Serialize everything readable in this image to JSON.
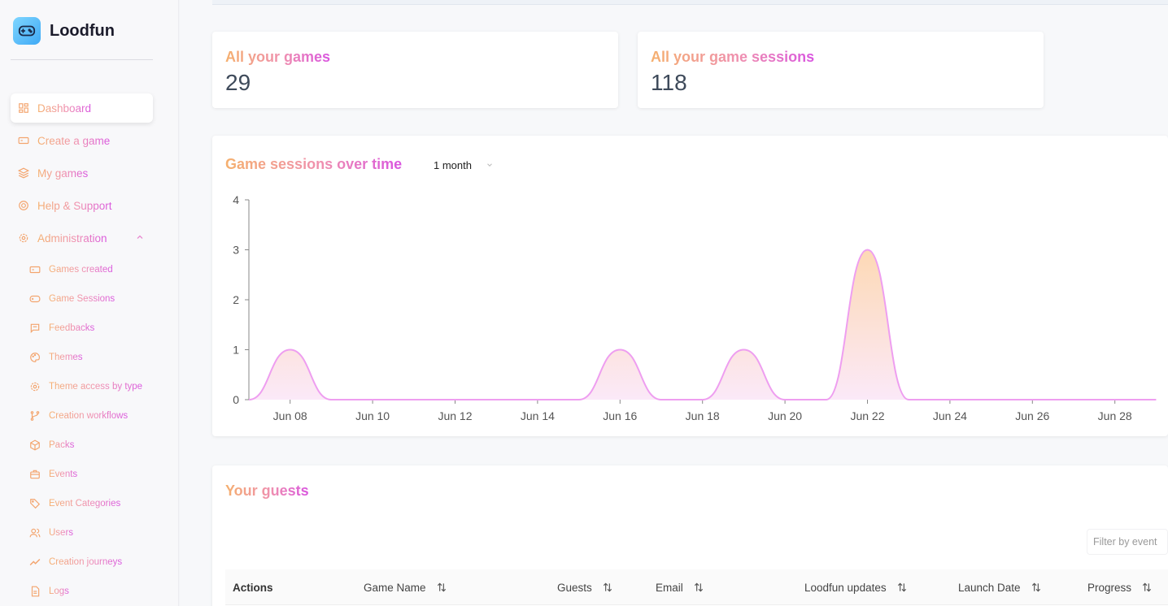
{
  "app": {
    "name": "Loodfun"
  },
  "sidebar": {
    "items": [
      {
        "label": "Dashboard",
        "icon": "dashboard-icon",
        "active": true
      },
      {
        "label": "Create a game",
        "icon": "ticket-icon"
      },
      {
        "label": "My games",
        "icon": "layers-icon"
      },
      {
        "label": "Help & Support",
        "icon": "lifebuoy-icon"
      },
      {
        "label": "Administration",
        "icon": "gear-icon",
        "expanded": true
      }
    ],
    "admin_items": [
      {
        "label": "Games created",
        "icon": "ticket-icon"
      },
      {
        "label": "Game Sessions",
        "icon": "gamepad-icon"
      },
      {
        "label": "Feedbacks",
        "icon": "message-icon"
      },
      {
        "label": "Themes",
        "icon": "palette-icon"
      },
      {
        "label": "Theme access by type",
        "icon": "gear-icon"
      },
      {
        "label": "Creation workflows",
        "icon": "workflow-icon"
      },
      {
        "label": "Packs",
        "icon": "box-icon"
      },
      {
        "label": "Events",
        "icon": "briefcase-icon"
      },
      {
        "label": "Event Categories",
        "icon": "tags-icon"
      },
      {
        "label": "Users",
        "icon": "users-icon"
      },
      {
        "label": "Creation journeys",
        "icon": "trend-icon"
      },
      {
        "label": "Logs",
        "icon": "file-icon"
      }
    ]
  },
  "stats": [
    {
      "title": "All your games",
      "value": "29"
    },
    {
      "title": "All your game sessions",
      "value": "118"
    }
  ],
  "sessions_chart": {
    "title": "Game sessions over time",
    "range": "1 month"
  },
  "chart_data": {
    "type": "area",
    "title": "Game sessions over time",
    "xlabel": "",
    "ylabel": "",
    "ylim": [
      0,
      4
    ],
    "yticks": [
      "0",
      "1",
      "2",
      "3",
      "4"
    ],
    "xticks": [
      "Jun 08",
      "Jun 10",
      "Jun 12",
      "Jun 14",
      "Jun 16",
      "Jun 18",
      "Jun 20",
      "Jun 22",
      "Jun 24",
      "Jun 26",
      "Jun 28"
    ],
    "x": [
      "Jun 07",
      "Jun 08",
      "Jun 09",
      "Jun 10",
      "Jun 11",
      "Jun 12",
      "Jun 13",
      "Jun 14",
      "Jun 15",
      "Jun 16",
      "Jun 17",
      "Jun 18",
      "Jun 19",
      "Jun 20",
      "Jun 21",
      "Jun 22",
      "Jun 23",
      "Jun 24",
      "Jun 25",
      "Jun 26",
      "Jun 27",
      "Jun 28",
      "Jun 29"
    ],
    "series": [
      {
        "values": [
          0,
          1,
          0,
          0,
          0,
          0,
          0,
          0,
          0,
          1,
          0,
          0,
          1,
          0,
          0,
          3,
          0,
          0,
          0,
          0,
          0,
          0,
          0
        ]
      }
    ],
    "colors": {
      "line": "#ee9ef0",
      "fill_top": "#fdd9b5",
      "fill_bottom": "#fbe9f8"
    },
    "grid": false
  },
  "guests": {
    "title": "Your guests",
    "filter_placeholder": "Filter by event",
    "columns": [
      "Actions",
      "Game Name",
      "Guests",
      "Email",
      "Loodfun updates",
      "Launch Date",
      "Progress"
    ]
  }
}
